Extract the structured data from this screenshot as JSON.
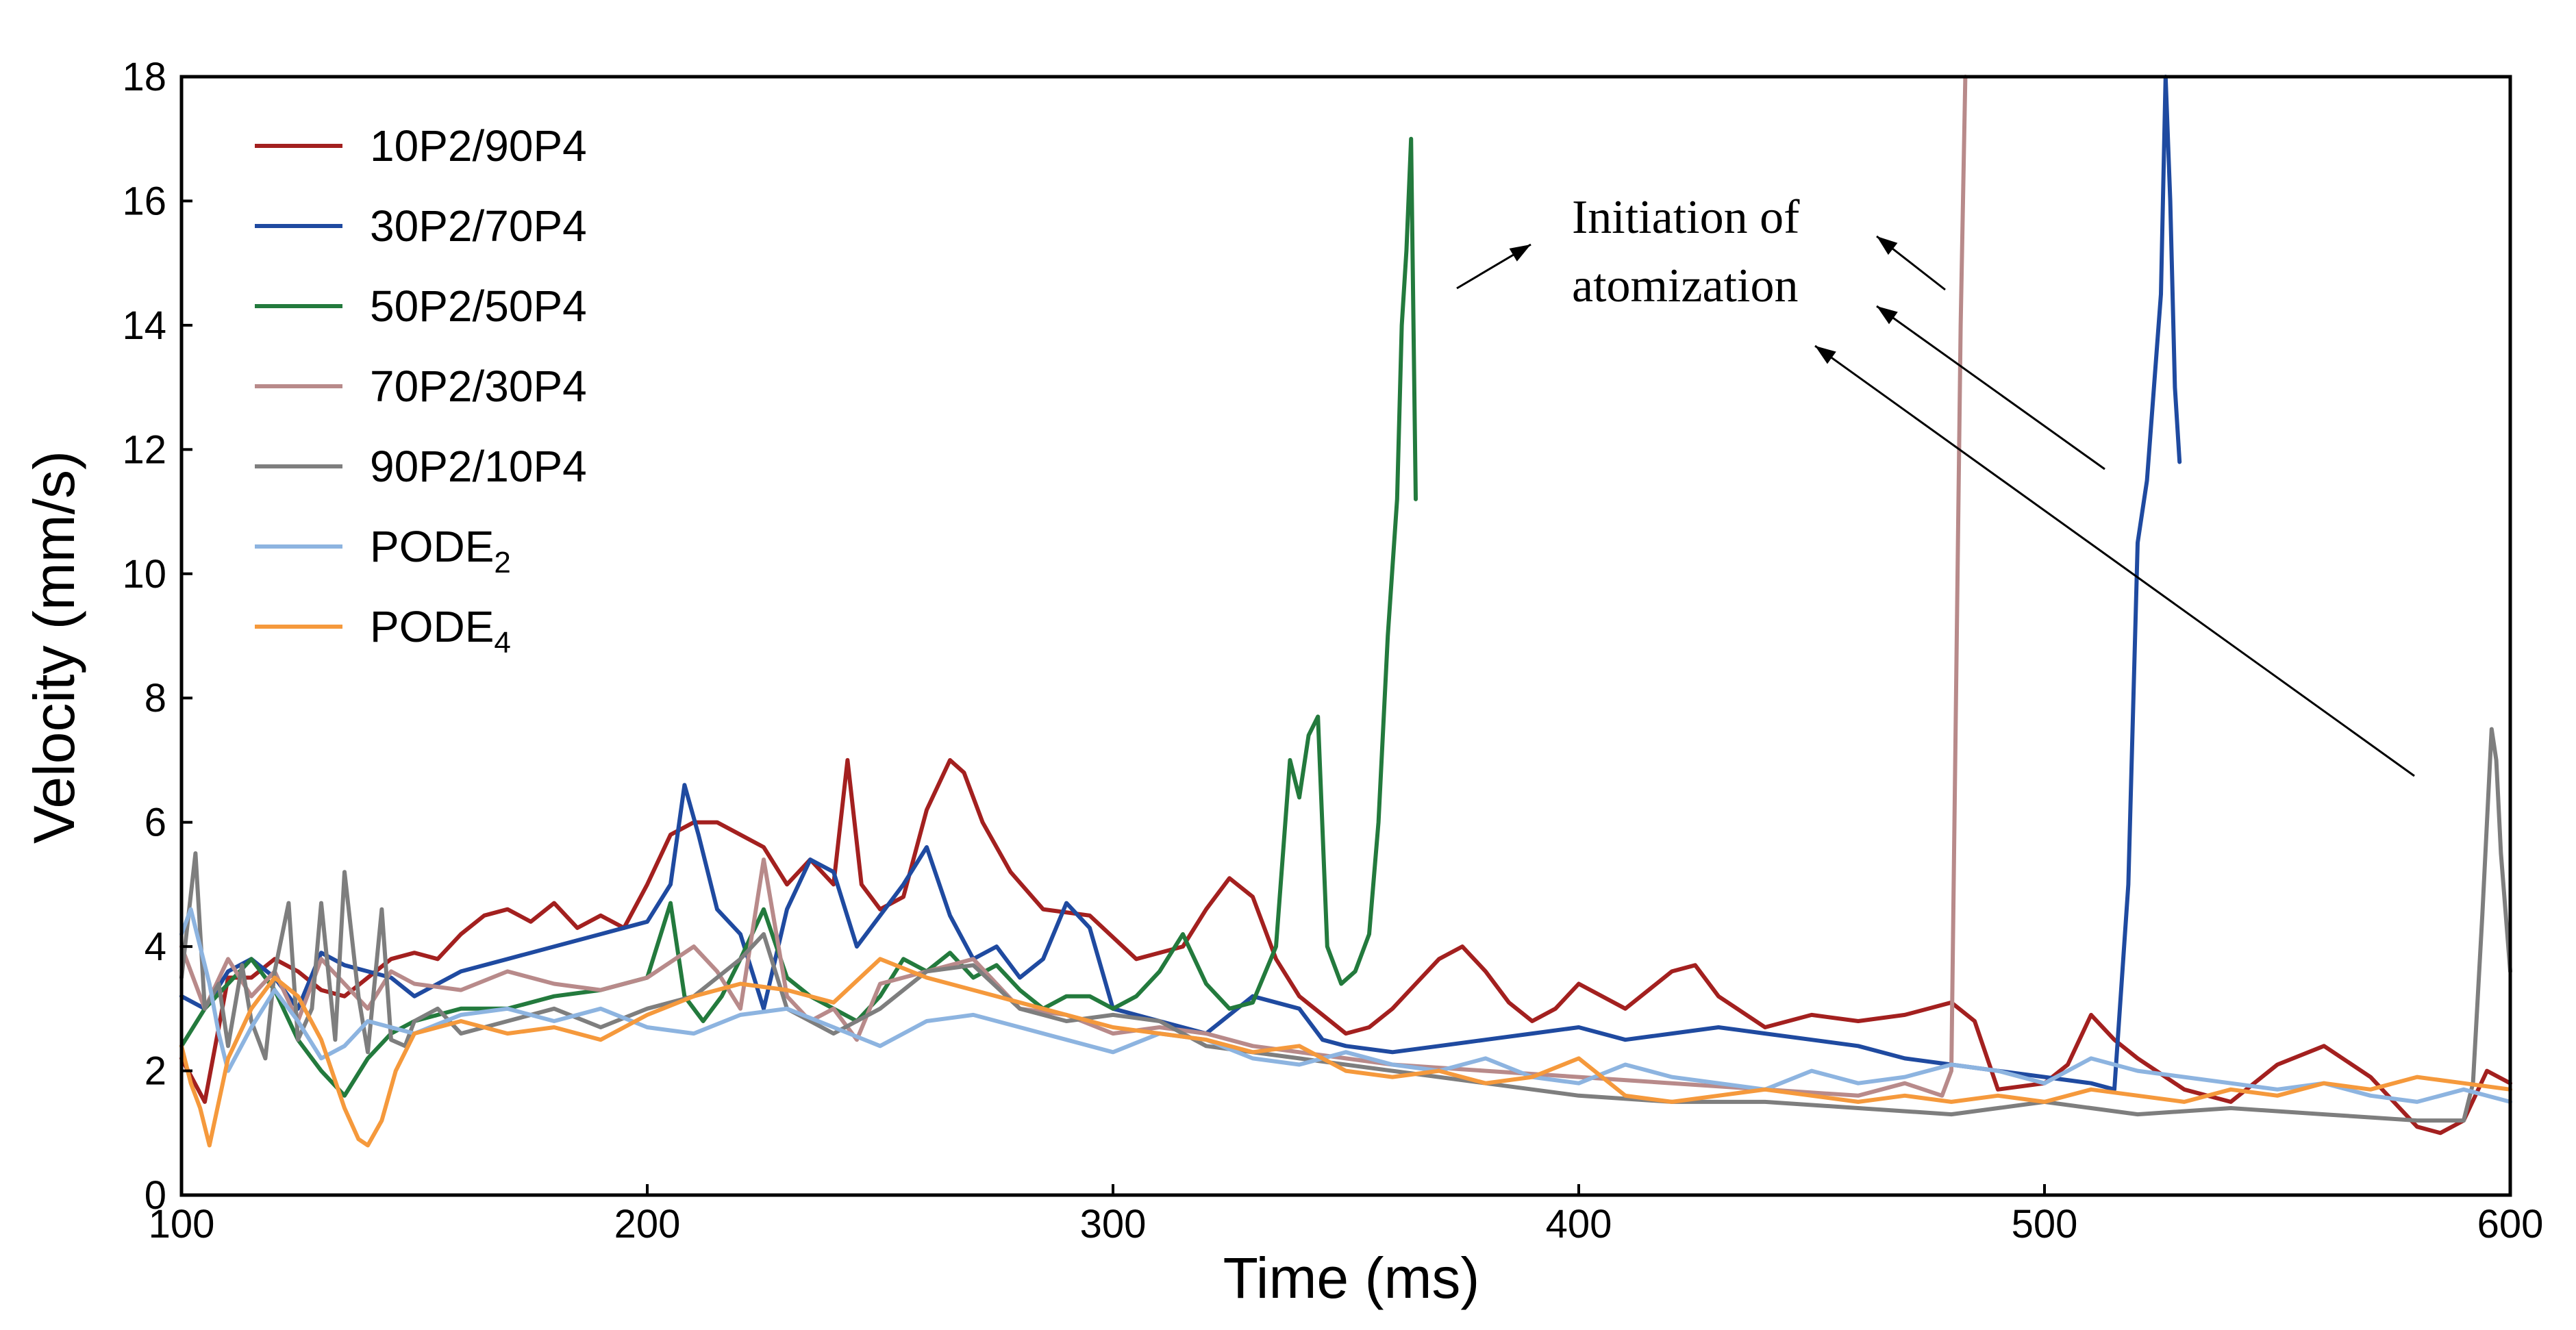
{
  "chart_data": {
    "type": "line",
    "title": "",
    "xlabel": "Time (ms)",
    "ylabel": "Velocity (mm/s)",
    "xlim": [
      100,
      600
    ],
    "ylim": [
      0,
      18
    ],
    "xticks": [
      100,
      200,
      300,
      400,
      500,
      600
    ],
    "yticks": [
      0,
      2,
      4,
      6,
      8,
      10,
      12,
      14,
      16,
      18
    ],
    "grid": false,
    "legend_position": "top-left",
    "annotation": {
      "line1": "Initiation of",
      "line2": "atomization"
    },
    "series": [
      {
        "name": "10P2/90P4",
        "color": "#a3201f",
        "x": [
          100,
          105,
          110,
          115,
          120,
          125,
          130,
          135,
          140,
          145,
          150,
          155,
          160,
          165,
          170,
          175,
          180,
          185,
          190,
          195,
          200,
          205,
          210,
          215,
          220,
          225,
          230,
          235,
          240,
          243,
          246,
          250,
          255,
          260,
          265,
          268,
          272,
          278,
          285,
          295,
          305,
          315,
          320,
          325,
          330,
          335,
          340,
          345,
          350,
          355,
          360,
          365,
          370,
          375,
          380,
          385,
          390,
          395,
          400,
          410,
          420,
          425,
          430,
          440,
          450,
          460,
          470,
          480,
          485,
          490,
          500,
          505,
          510,
          515,
          520,
          530,
          540,
          550,
          560,
          570,
          580,
          585,
          590,
          595,
          600
        ],
        "values": [
          2.2,
          1.5,
          3.5,
          3.5,
          3.8,
          3.6,
          3.3,
          3.2,
          3.5,
          3.8,
          3.9,
          3.8,
          4.2,
          4.5,
          4.6,
          4.4,
          4.7,
          4.3,
          4.5,
          4.3,
          5.0,
          5.8,
          6.0,
          6.0,
          5.8,
          5.6,
          5.0,
          5.4,
          5.0,
          7.0,
          5.0,
          4.6,
          4.8,
          6.2,
          7.0,
          6.8,
          6.0,
          5.2,
          4.6,
          4.5,
          3.8,
          4.0,
          4.6,
          5.1,
          4.8,
          3.8,
          3.2,
          2.9,
          2.6,
          2.7,
          3.0,
          3.4,
          3.8,
          4.0,
          3.6,
          3.1,
          2.8,
          3.0,
          3.4,
          3.0,
          3.6,
          3.7,
          3.2,
          2.7,
          2.9,
          2.8,
          2.9,
          3.1,
          2.8,
          1.7,
          1.8,
          2.1,
          2.9,
          2.5,
          2.2,
          1.7,
          1.5,
          2.1,
          2.4,
          1.9,
          1.1,
          1.0,
          1.2,
          2.0,
          1.8
        ]
      },
      {
        "name": "30P2/70P4",
        "color": "#1f4aa0",
        "x": [
          100,
          105,
          110,
          115,
          120,
          125,
          130,
          135,
          140,
          145,
          150,
          160,
          170,
          180,
          190,
          200,
          205,
          208,
          211,
          215,
          220,
          225,
          230,
          235,
          240,
          245,
          250,
          255,
          260,
          265,
          270,
          275,
          280,
          285,
          290,
          295,
          300,
          310,
          320,
          330,
          340,
          345,
          350,
          360,
          370,
          380,
          390,
          400,
          410,
          420,
          430,
          440,
          450,
          460,
          470,
          480,
          490,
          500,
          510,
          515,
          518,
          520,
          522,
          524,
          525,
          526,
          527,
          528,
          529
        ],
        "values": [
          3.2,
          3.0,
          3.6,
          3.8,
          3.5,
          3.0,
          3.9,
          3.7,
          3.6,
          3.5,
          3.2,
          3.6,
          3.8,
          4.0,
          4.2,
          4.4,
          5.0,
          6.6,
          5.8,
          4.6,
          4.2,
          3.0,
          4.6,
          5.4,
          5.2,
          4.0,
          4.5,
          5.0,
          5.6,
          4.5,
          3.8,
          4.0,
          3.5,
          3.8,
          4.7,
          4.3,
          3.0,
          2.8,
          2.6,
          3.2,
          3.0,
          2.5,
          2.4,
          2.3,
          2.4,
          2.5,
          2.6,
          2.7,
          2.5,
          2.6,
          2.7,
          2.6,
          2.5,
          2.4,
          2.2,
          2.1,
          2.0,
          1.9,
          1.8,
          1.7,
          5.0,
          10.5,
          11.5,
          13.5,
          14.5,
          18.0,
          16.0,
          13.0,
          11.8
        ]
      },
      {
        "name": "50P2/50P4",
        "color": "#237a3d",
        "x": [
          100,
          105,
          110,
          115,
          120,
          125,
          130,
          135,
          140,
          145,
          150,
          155,
          160,
          170,
          180,
          190,
          200,
          205,
          208,
          212,
          216,
          220,
          225,
          230,
          235,
          240,
          245,
          250,
          255,
          260,
          265,
          270,
          275,
          280,
          285,
          290,
          295,
          300,
          305,
          310,
          315,
          320,
          325,
          330,
          335,
          338,
          340,
          342,
          344,
          346,
          349,
          352,
          355,
          357,
          359,
          361,
          362,
          363,
          364,
          365
        ],
        "values": [
          2.4,
          3.0,
          3.4,
          3.8,
          3.3,
          2.5,
          2.0,
          1.6,
          2.2,
          2.6,
          2.8,
          2.9,
          3.0,
          3.0,
          3.2,
          3.3,
          3.5,
          4.7,
          3.2,
          2.8,
          3.2,
          3.8,
          4.6,
          3.5,
          3.2,
          3.0,
          2.8,
          3.2,
          3.8,
          3.6,
          3.9,
          3.5,
          3.7,
          3.3,
          3.0,
          3.2,
          3.2,
          3.0,
          3.2,
          3.6,
          4.2,
          3.4,
          3.0,
          3.1,
          4.0,
          7.0,
          6.4,
          7.4,
          7.7,
          4.0,
          3.4,
          3.6,
          4.2,
          6.0,
          9.0,
          11.2,
          14.0,
          15.2,
          17.0,
          11.2
        ]
      },
      {
        "name": "70P2/30P4",
        "color": "#b88a8a",
        "x": [
          100,
          105,
          110,
          115,
          120,
          125,
          130,
          135,
          140,
          145,
          150,
          160,
          170,
          180,
          190,
          200,
          210,
          215,
          220,
          225,
          230,
          235,
          240,
          245,
          250,
          260,
          270,
          280,
          290,
          300,
          310,
          320,
          330,
          340,
          350,
          360,
          380,
          400,
          420,
          440,
          460,
          470,
          478,
          480,
          481,
          482,
          483
        ],
        "values": [
          4.0,
          3.0,
          3.8,
          3.2,
          3.6,
          2.8,
          3.8,
          3.4,
          3.0,
          3.6,
          3.4,
          3.3,
          3.6,
          3.4,
          3.3,
          3.5,
          4.0,
          3.6,
          3.0,
          5.4,
          3.2,
          2.8,
          3.0,
          2.5,
          3.4,
          3.6,
          3.8,
          3.0,
          2.9,
          2.6,
          2.7,
          2.6,
          2.4,
          2.3,
          2.2,
          2.1,
          2.0,
          1.9,
          1.8,
          1.7,
          1.6,
          1.8,
          1.6,
          2.0,
          8.0,
          14.0,
          18.0
        ]
      },
      {
        "name": "90P2/10P4",
        "color": "#7e7e7e",
        "x": [
          100,
          103,
          105,
          108,
          110,
          113,
          115,
          118,
          120,
          123,
          125,
          128,
          130,
          133,
          135,
          138,
          140,
          143,
          145,
          148,
          150,
          155,
          160,
          170,
          180,
          190,
          200,
          210,
          220,
          225,
          230,
          240,
          250,
          260,
          270,
          280,
          290,
          300,
          310,
          320,
          340,
          360,
          380,
          400,
          420,
          440,
          460,
          480,
          500,
          520,
          540,
          560,
          580,
          590,
          592,
          594,
          596,
          597,
          598,
          600
        ],
        "values": [
          3.5,
          5.5,
          3.0,
          3.4,
          2.4,
          3.7,
          2.8,
          2.2,
          3.6,
          4.7,
          2.5,
          3.0,
          4.7,
          2.5,
          5.2,
          3.2,
          2.3,
          4.6,
          2.5,
          2.4,
          2.8,
          3.0,
          2.6,
          2.8,
          3.0,
          2.7,
          3.0,
          3.2,
          3.8,
          4.2,
          3.0,
          2.6,
          3.0,
          3.6,
          3.7,
          3.0,
          2.8,
          2.9,
          2.8,
          2.4,
          2.2,
          2.0,
          1.8,
          1.6,
          1.5,
          1.5,
          1.4,
          1.3,
          1.5,
          1.3,
          1.4,
          1.3,
          1.2,
          1.2,
          1.8,
          4.5,
          7.5,
          7.0,
          5.5,
          3.6
        ]
      },
      {
        "name": "PODE₂",
        "label_main": "PODE",
        "label_sub": "2",
        "color": "#8db4e0",
        "x": [
          100,
          102,
          104,
          106,
          108,
          110,
          115,
          120,
          125,
          130,
          135,
          140,
          150,
          160,
          170,
          180,
          190,
          200,
          210,
          220,
          230,
          240,
          250,
          260,
          270,
          280,
          290,
          300,
          310,
          320,
          330,
          340,
          350,
          360,
          370,
          380,
          390,
          400,
          410,
          420,
          430,
          440,
          450,
          460,
          470,
          480,
          490,
          500,
          510,
          520,
          530,
          540,
          550,
          560,
          570,
          580,
          590,
          600
        ],
        "values": [
          4.2,
          4.6,
          4.0,
          3.4,
          2.6,
          2.0,
          2.7,
          3.3,
          2.8,
          2.2,
          2.4,
          2.8,
          2.6,
          2.9,
          3.0,
          2.8,
          3.0,
          2.7,
          2.6,
          2.9,
          3.0,
          2.7,
          2.4,
          2.8,
          2.9,
          2.7,
          2.5,
          2.3,
          2.6,
          2.5,
          2.2,
          2.1,
          2.3,
          2.1,
          2.0,
          2.2,
          1.9,
          1.8,
          2.1,
          1.9,
          1.8,
          1.7,
          2.0,
          1.8,
          1.9,
          2.1,
          2.0,
          1.8,
          2.2,
          2.0,
          1.9,
          1.8,
          1.7,
          1.8,
          1.6,
          1.5,
          1.7,
          1.5
        ]
      },
      {
        "name": "PODE₄",
        "label_main": "PODE",
        "label_sub": "4",
        "color": "#f5993c",
        "x": [
          100,
          102,
          104,
          106,
          108,
          110,
          115,
          120,
          125,
          130,
          135,
          138,
          140,
          143,
          146,
          150,
          160,
          170,
          180,
          190,
          200,
          210,
          220,
          230,
          240,
          250,
          260,
          270,
          280,
          290,
          300,
          310,
          320,
          330,
          340,
          350,
          360,
          370,
          380,
          390,
          400,
          410,
          420,
          430,
          440,
          450,
          460,
          470,
          480,
          490,
          500,
          510,
          520,
          530,
          540,
          550,
          560,
          570,
          580,
          590,
          600
        ],
        "values": [
          2.4,
          1.8,
          1.4,
          0.8,
          1.5,
          2.2,
          3.0,
          3.5,
          3.2,
          2.5,
          1.4,
          0.9,
          0.8,
          1.2,
          2.0,
          2.6,
          2.8,
          2.6,
          2.7,
          2.5,
          2.9,
          3.2,
          3.4,
          3.3,
          3.1,
          3.8,
          3.5,
          3.3,
          3.1,
          2.9,
          2.7,
          2.6,
          2.5,
          2.3,
          2.4,
          2.0,
          1.9,
          2.0,
          1.8,
          1.9,
          2.2,
          1.6,
          1.5,
          1.6,
          1.7,
          1.6,
          1.5,
          1.6,
          1.5,
          1.6,
          1.5,
          1.7,
          1.6,
          1.5,
          1.7,
          1.6,
          1.8,
          1.7,
          1.9,
          1.8,
          1.7
        ]
      }
    ]
  }
}
